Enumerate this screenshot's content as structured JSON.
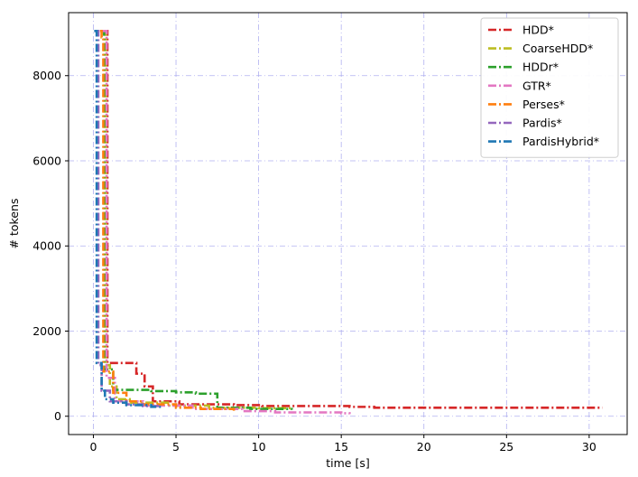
{
  "chart_data": {
    "type": "line",
    "title": "",
    "xlabel": "time [s]",
    "ylabel": "# tokens",
    "xlim": [
      -1.5,
      32.3
    ],
    "ylim": [
      -430,
      9480
    ],
    "xticks": [
      0,
      5,
      10,
      15,
      20,
      25,
      30
    ],
    "yticks": [
      0,
      2000,
      4000,
      6000,
      8000
    ],
    "grid": true,
    "legend_position": "top-right",
    "series": [
      {
        "name": "HDD*",
        "color": "#d62728",
        "step": true,
        "points": [
          [
            0.65,
            9050
          ],
          [
            0.85,
            1250
          ],
          [
            2.6,
            1000
          ],
          [
            3.1,
            700
          ],
          [
            3.6,
            350
          ],
          [
            5.2,
            280
          ],
          [
            8.5,
            260
          ],
          [
            10.2,
            240
          ],
          [
            15.5,
            220
          ],
          [
            17.0,
            200
          ],
          [
            30.8,
            200
          ]
        ]
      },
      {
        "name": "CoarseHDD*",
        "color": "#bcbd22",
        "step": true,
        "points": [
          [
            0.55,
            9050
          ],
          [
            0.75,
            1200
          ],
          [
            1.0,
            700
          ],
          [
            1.4,
            400
          ],
          [
            2.2,
            320
          ],
          [
            4.5,
            250
          ],
          [
            7.0,
            200
          ],
          [
            10.0,
            190
          ],
          [
            12.0,
            180
          ]
        ]
      },
      {
        "name": "HDDr*",
        "color": "#2ca02c",
        "step": true,
        "points": [
          [
            0.45,
            9050
          ],
          [
            0.65,
            1100
          ],
          [
            1.2,
            620
          ],
          [
            3.5,
            590
          ],
          [
            5.0,
            560
          ],
          [
            6.2,
            530
          ],
          [
            7.5,
            430
          ],
          [
            7.5,
            200
          ],
          [
            9.5,
            170
          ],
          [
            12.0,
            150
          ]
        ]
      },
      {
        "name": "GTR*",
        "color": "#e377c2",
        "step": true,
        "points": [
          [
            0.5,
            9050
          ],
          [
            0.8,
            900
          ],
          [
            1.3,
            350
          ],
          [
            3.0,
            250
          ],
          [
            6.0,
            170
          ],
          [
            9.0,
            120
          ],
          [
            11.0,
            90
          ],
          [
            15.0,
            70
          ],
          [
            15.5,
            50
          ]
        ]
      },
      {
        "name": "Perses*",
        "color": "#ff7f0e",
        "step": true,
        "points": [
          [
            0.4,
            9050
          ],
          [
            0.5,
            8900
          ],
          [
            0.6,
            1050
          ],
          [
            1.2,
            550
          ],
          [
            2.0,
            350
          ],
          [
            3.0,
            280
          ],
          [
            5.0,
            200
          ],
          [
            6.5,
            170
          ],
          [
            8.5,
            130
          ]
        ]
      },
      {
        "name": "Pardis*",
        "color": "#9467bd",
        "step": true,
        "points": [
          [
            0.15,
            9050
          ],
          [
            0.3,
            1200
          ],
          [
            0.5,
            600
          ],
          [
            1.0,
            350
          ],
          [
            2.0,
            280
          ],
          [
            3.0,
            240
          ],
          [
            4.0,
            220
          ]
        ]
      },
      {
        "name": "PardisHybrid*",
        "color": "#1f77b4",
        "step": true,
        "points": [
          [
            0.05,
            9050
          ],
          [
            0.2,
            1250
          ],
          [
            0.5,
            600
          ],
          [
            0.7,
            400
          ],
          [
            1.2,
            320
          ],
          [
            2.0,
            260
          ],
          [
            3.5,
            220
          ],
          [
            4.2,
            200
          ]
        ]
      }
    ]
  }
}
